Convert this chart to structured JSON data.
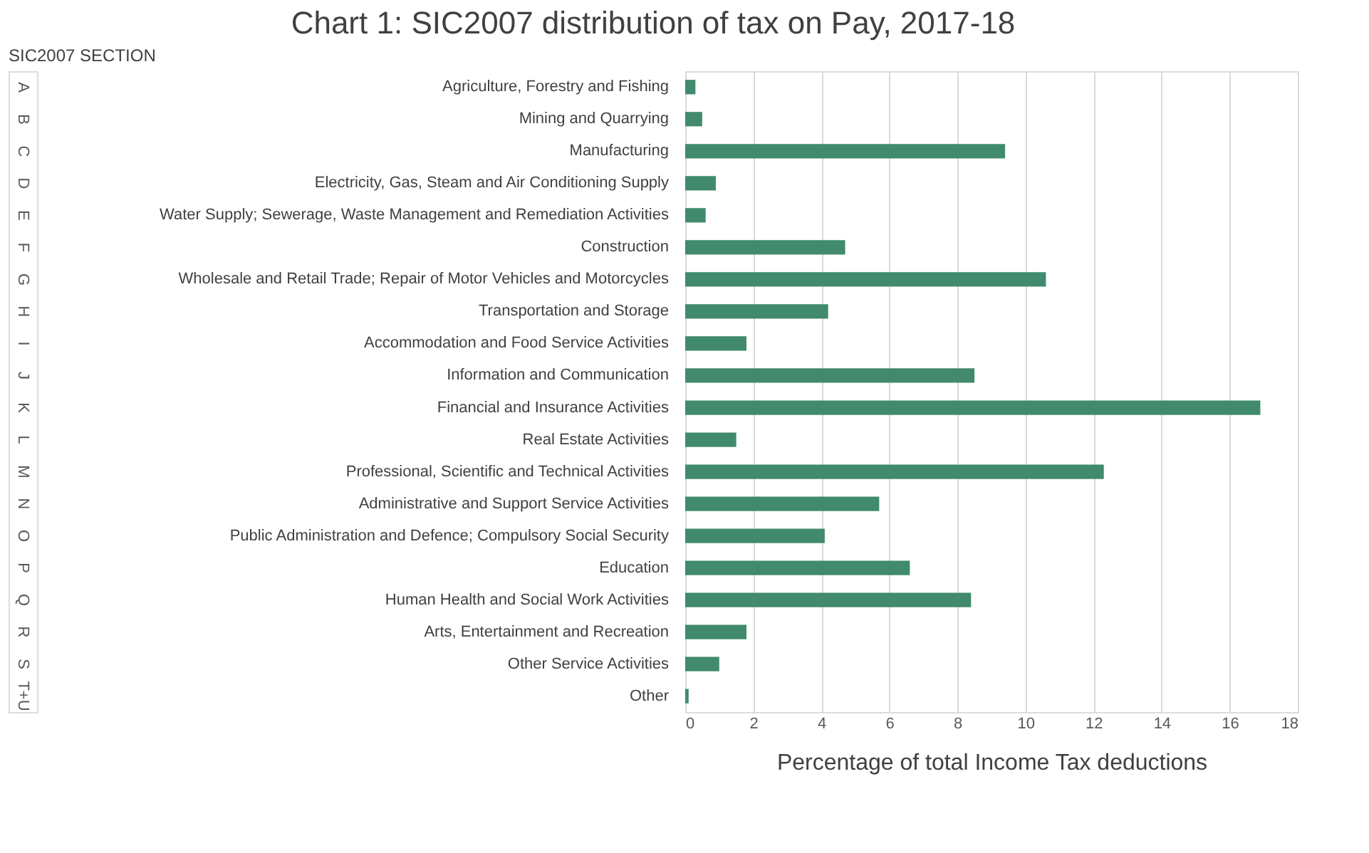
{
  "chart_data": {
    "type": "bar",
    "orientation": "horizontal",
    "title": "Chart 1: SIC2007 distribution of tax on Pay, 2017-18",
    "ylabel": "SIC2007 SECTION",
    "xlabel": "Percentage of total Income Tax deductions",
    "categories": [
      "Agriculture, Forestry and Fishing",
      "Mining and Quarrying",
      "Manufacturing",
      "Electricity, Gas, Steam and Air Conditioning Supply",
      "Water Supply; Sewerage, Waste Management and Remediation Activities",
      "Construction",
      "Wholesale and Retail Trade; Repair of Motor Vehicles and Motorcycles",
      "Transportation and Storage",
      "Accommodation and Food Service Activities",
      "Information and Communication",
      "Financial and Insurance Activities",
      "Real Estate Activities",
      "Professional, Scientific and Technical Activities",
      "Administrative and Support Service Activities",
      "Public Administration and Defence; Compulsory Social Security",
      "Education",
      "Human Health and Social Work Activities",
      "Arts, Entertainment and Recreation",
      "Other Service Activities",
      "Other"
    ],
    "y2_categories": [
      "A",
      "B",
      "C",
      "D",
      "E",
      "F",
      "G",
      "H",
      "I",
      "J",
      "K",
      "L",
      "M",
      "N",
      "O",
      "P",
      "Q",
      "R",
      "S",
      "T+U"
    ],
    "values": [
      0.3,
      0.5,
      9.4,
      0.9,
      0.6,
      4.7,
      10.6,
      4.2,
      1.8,
      8.5,
      16.9,
      1.5,
      12.3,
      5.7,
      4.1,
      6.6,
      8.4,
      1.8,
      1.0,
      0.1
    ],
    "color": "#418a6d",
    "xlim": [
      0,
      18
    ],
    "xticks": [
      0,
      2,
      4,
      6,
      8,
      10,
      12,
      14,
      16,
      18
    ],
    "grid": "x"
  }
}
